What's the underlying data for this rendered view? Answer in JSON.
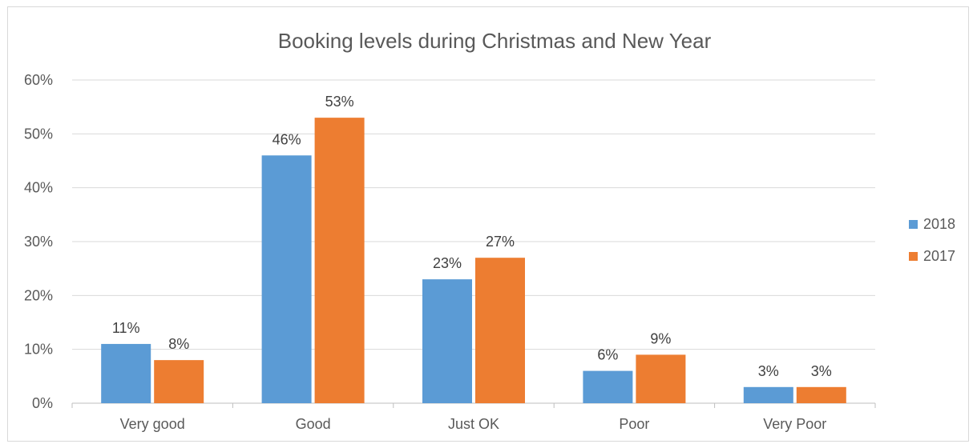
{
  "chart_data": {
    "type": "bar",
    "title": "Booking levels during Christmas and New Year",
    "categories": [
      "Very good",
      "Good",
      "Just OK",
      "Poor",
      "Very Poor"
    ],
    "series": [
      {
        "name": "2018",
        "color": "#5B9BD5",
        "values": [
          11,
          46,
          23,
          6,
          3
        ],
        "labels": [
          "11%",
          "46%",
          "23%",
          "6%",
          "3%"
        ]
      },
      {
        "name": "2017",
        "color": "#ED7D31",
        "values": [
          8,
          53,
          27,
          9,
          3
        ],
        "labels": [
          "8%",
          "53%",
          "27%",
          "9%",
          "3%"
        ]
      }
    ],
    "ylim": [
      0,
      60
    ],
    "yticks": [
      "0%",
      "10%",
      "20%",
      "30%",
      "40%",
      "50%",
      "60%"
    ],
    "grid": true,
    "legend": "right",
    "gridline_color": "#d9d9d9"
  }
}
